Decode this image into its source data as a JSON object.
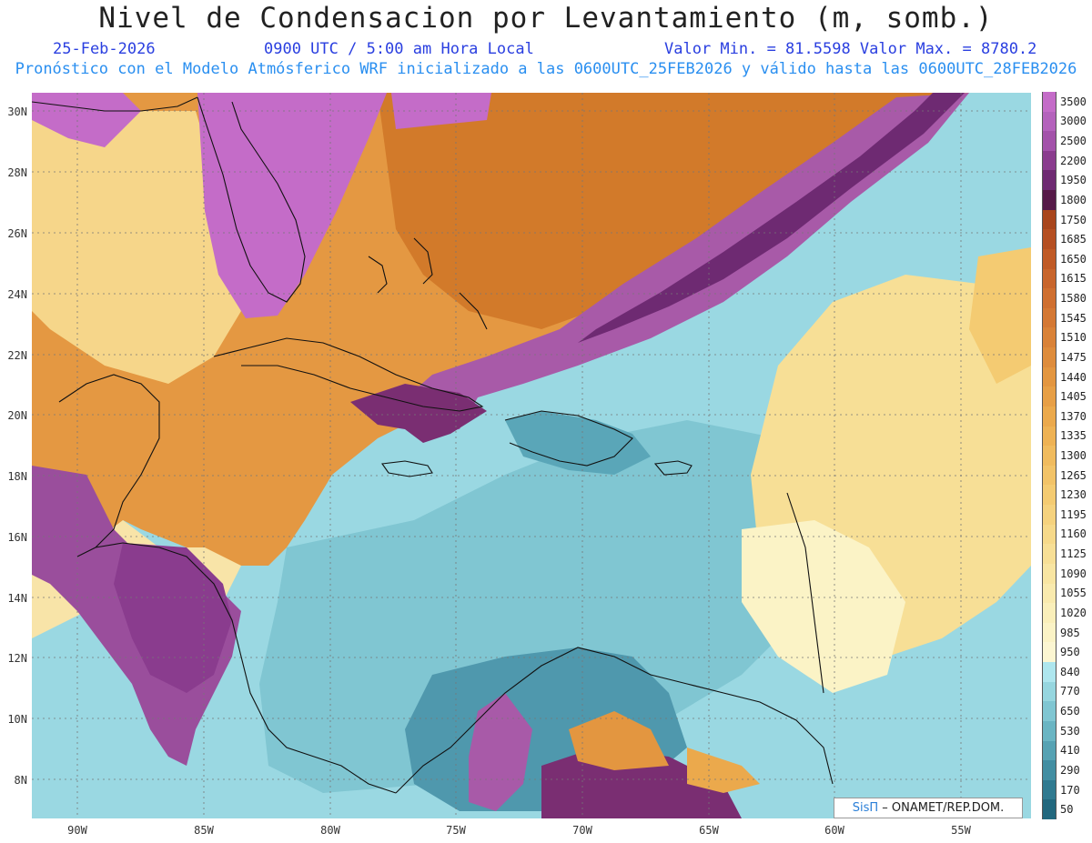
{
  "header": {
    "title": "Nivel de Condensacion por Levantamiento (m, somb.)",
    "date": "25-Feb-2026",
    "time": "0900 UTC / 5:00 am Hora Local",
    "minmax": "Valor Min. = 81.5598  Valor Max. = 8780.2",
    "forecast": "Pronóstico con el Modelo Atmósferico WRF inicializado a las 0600UTC_25FEB2026 y válido hasta las  0600UTC_28FEB2026"
  },
  "map": {
    "lat_labels": [
      "30N",
      "28N",
      "26N",
      "24N",
      "22N",
      "20N",
      "18N",
      "16N",
      "14N",
      "12N",
      "10N",
      "8N"
    ],
    "lon_labels": [
      "90W",
      "85W",
      "80W",
      "75W",
      "70W",
      "65W",
      "60W",
      "55W"
    ],
    "lat_range": [
      6.7,
      30.6
    ],
    "lon_range": [
      -92.0,
      -52.4
    ],
    "grid": true,
    "credit_brand": "SisΠ",
    "credit_text": "– ONAMET/REP.DOM."
  },
  "colorbar": {
    "labels": [
      "3500",
      "3000",
      "2500",
      "2200",
      "1950",
      "1800",
      "1750",
      "1685",
      "1650",
      "1615",
      "1580",
      "1545",
      "1510",
      "1475",
      "1440",
      "1405",
      "1370",
      "1335",
      "1300",
      "1265",
      "1230",
      "1195",
      "1160",
      "1125",
      "1090",
      "1055",
      "1020",
      "985",
      "950",
      "840",
      "770",
      "650",
      "530",
      "410",
      "290",
      "170",
      "50"
    ],
    "colors": [
      "#c46cc8",
      "#b462bc",
      "#a352aa",
      "#8a3c8e",
      "#6e2a72",
      "#561a48",
      "#a8451c",
      "#b54f22",
      "#c05a26",
      "#c8652c",
      "#cf6f30",
      "#d47834",
      "#d98238",
      "#de8c3c",
      "#e39640",
      "#e79f46",
      "#eba94c",
      "#eeb254",
      "#f0bb5e",
      "#f2c368",
      "#f4cb72",
      "#f5d27e",
      "#f6d98a",
      "#f7df96",
      "#f8e5a2",
      "#f9eaae",
      "#faefba",
      "#fbf3c6",
      "#fcf6d2",
      "#aee6ee",
      "#96d6df",
      "#80c6d2",
      "#6ab5c3",
      "#56a2b3",
      "#428ea2",
      "#307a90",
      "#22687e"
    ]
  }
}
